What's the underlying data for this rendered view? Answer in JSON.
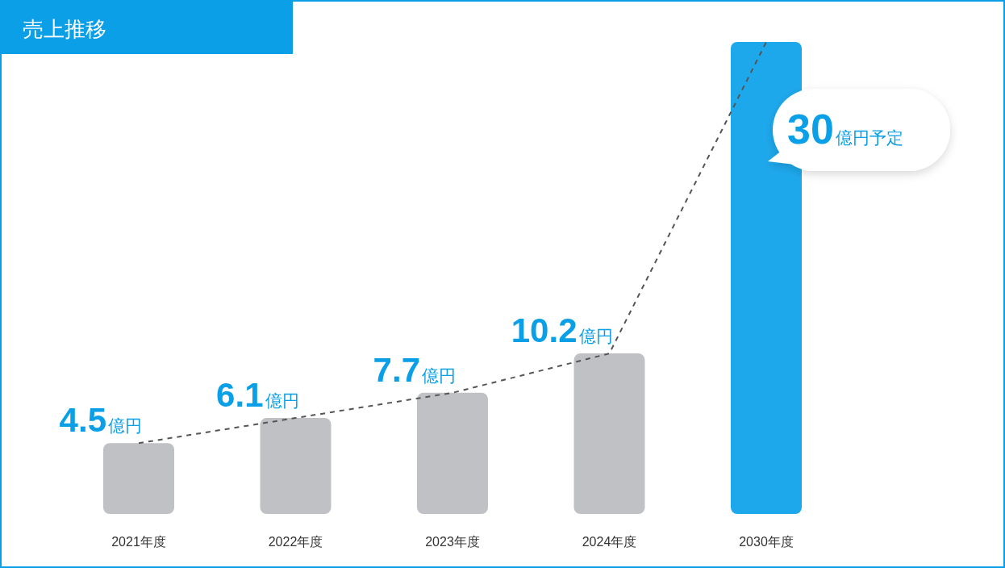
{
  "chart_data": {
    "type": "bar",
    "title": "売上推移",
    "categories": [
      "2021年度",
      "2022年度",
      "2023年度",
      "2024年度",
      "2030年度"
    ],
    "series": [
      {
        "type": "line",
        "color": "#555555",
        "line_style": "dashed",
        "values": [
          4.5,
          6.1,
          7.7,
          10.2,
          30
        ]
      },
      {
        "colors": [
          "#c0c1c5",
          "#c0c1c5",
          "#c0c1c5",
          "#c0c1c5",
          "#1ea8ec"
        ],
        "values": [
          4.5,
          6.1,
          7.7,
          10.2,
          30
        ],
        "value_labels": [
          "4.5億円",
          "6.1億円",
          "7.7億円",
          "10.2億円",
          null
        ]
      }
    ],
    "ylim": [
      0,
      30
    ],
    "annotations": [
      {
        "text": "30億円予定",
        "x": "2030年度",
        "y": 30
      }
    ]
  }
}
